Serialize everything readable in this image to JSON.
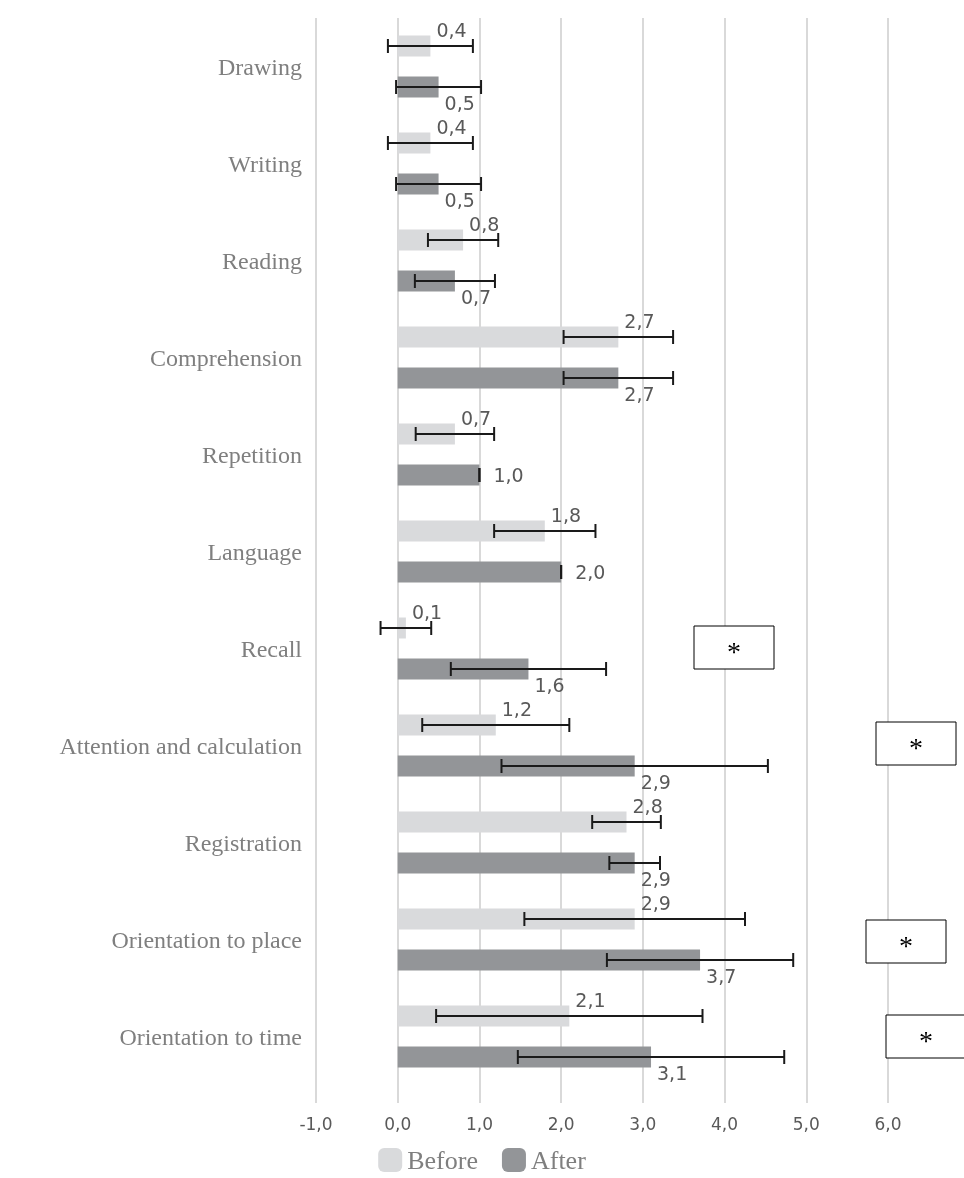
{
  "chart_data": {
    "type": "bar",
    "orientation": "horizontal",
    "categories": [
      "Drawing",
      "Writing",
      "Reading",
      "Comprehension",
      "Repetition",
      "Language",
      "Recall",
      "Attention and calculation",
      "Registration",
      "Orientation to place",
      "Orientation to time"
    ],
    "series": [
      {
        "name": "Before",
        "color": "#d9dadc",
        "values": [
          0.4,
          0.4,
          0.8,
          2.7,
          0.7,
          1.8,
          0.1,
          1.2,
          2.8,
          2.9,
          2.1
        ],
        "errors": [
          0.52,
          0.52,
          0.43,
          0.67,
          0.48,
          0.62,
          0.31,
          0.9,
          0.42,
          1.35,
          1.63
        ],
        "value_labels": [
          "0,4",
          "0,4",
          "0,8",
          "2,7",
          "0,7",
          "1,8",
          "0,1",
          "1,2",
          "2,8",
          "2,9",
          "2,1"
        ]
      },
      {
        "name": "After",
        "color": "#939598",
        "values": [
          0.5,
          0.5,
          0.7,
          2.7,
          1.0,
          2.0,
          1.6,
          2.9,
          2.9,
          3.7,
          3.1
        ],
        "errors": [
          0.52,
          0.52,
          0.49,
          0.67,
          0,
          0,
          0.95,
          1.63,
          0.31,
          1.14,
          1.63
        ],
        "value_labels": [
          "0,5",
          "0,5",
          "0,7",
          "2,7",
          "1,0",
          "2,0",
          "1,6",
          "2,9",
          "2,9",
          "3,7",
          "3,1"
        ]
      }
    ],
    "xlim": [
      -1,
      6
    ],
    "xticks": [
      {
        "value": -1,
        "label": "-1,0"
      },
      {
        "value": 0,
        "label": "0,0"
      },
      {
        "value": 1,
        "label": "1,0"
      },
      {
        "value": 2,
        "label": "2,0"
      },
      {
        "value": 3,
        "label": "3,0"
      },
      {
        "value": 4,
        "label": "4,0"
      },
      {
        "value": 5,
        "label": "5,0"
      },
      {
        "value": 6,
        "label": "6,0"
      }
    ],
    "grid": "x",
    "legend": "bottom",
    "annotations": [
      "*",
      "*",
      "*",
      "*"
    ]
  }
}
